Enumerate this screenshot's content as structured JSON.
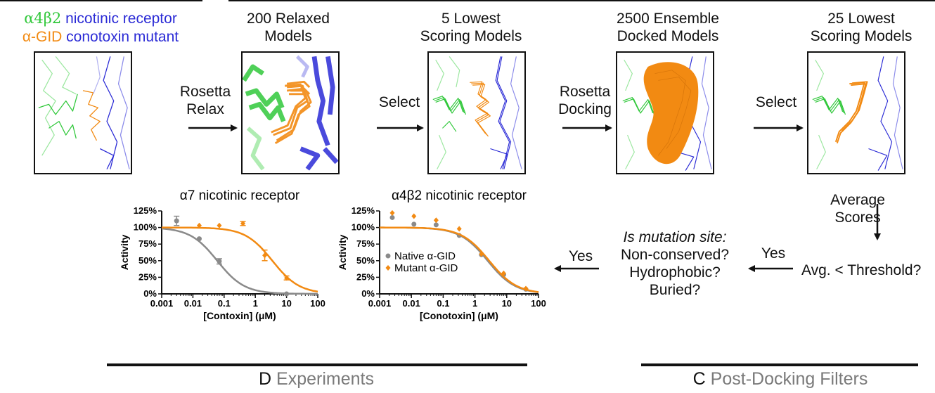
{
  "legend": {
    "line1_sym": "α4β2",
    "line1_text": " nicotinic receptor",
    "line2_sym": "α-GID",
    "line2_text": " conotoxin mutant",
    "green": "#31c83b",
    "blue": "#2b2bd6",
    "orange": "#f28a12"
  },
  "headers": {
    "relaxed": [
      "200 Relaxed",
      "Models"
    ],
    "lowest5": [
      "5 Lowest",
      "Scoring Models"
    ],
    "ensemble": [
      "2500 Ensemble",
      "Docked Models"
    ],
    "lowest25": [
      "25 Lowest",
      "Scoring Models"
    ]
  },
  "steps": {
    "relax": [
      "Rosetta",
      "Relax"
    ],
    "select1": "Select",
    "docking": [
      "Rosetta",
      "Docking"
    ],
    "select2": "Select",
    "average": [
      "Average",
      "Scores"
    ],
    "threshold": "Avg. < Threshold?",
    "yes1": "Yes",
    "yes2": "Yes"
  },
  "criteria": {
    "title": "Is mutation site:",
    "items": [
      "Non-conserved?",
      "Hydrophobic?",
      "Buried?"
    ]
  },
  "footers": {
    "experiments_letter": "D",
    "experiments_text": " Experiments",
    "filters_letter": "C",
    "filters_text": " Post-Docking Filters"
  },
  "chart_data": [
    {
      "type": "scatter",
      "title": "α7 nicotinic receptor",
      "xlabel": "[Contoxin] (μM)",
      "ylabel": "Activity",
      "xscale": "log",
      "xlim": [
        0.001,
        100
      ],
      "ylim": [
        0,
        125
      ],
      "xticks": [
        "0.001",
        "0.01",
        "0.1",
        "1",
        "10",
        "100"
      ],
      "yticks": [
        "0%",
        "25%",
        "50%",
        "75%",
        "100%",
        "125%"
      ],
      "grid": false,
      "series": [
        {
          "color": "#8a8a8a",
          "marker": "circle",
          "x": [
            0.003,
            0.016,
            0.07,
            10
          ],
          "y": [
            110,
            83,
            49,
            0
          ],
          "err": [
            7,
            0,
            4,
            0
          ],
          "fit": {
            "ic50": 0.06,
            "top": 100
          }
        },
        {
          "color": "#f28a12",
          "marker": "diamond",
          "x": [
            0.016,
            0.07,
            0.4,
            2.0,
            10
          ],
          "y": [
            103,
            103,
            106,
            58,
            24
          ],
          "err": [
            0,
            0,
            3,
            8,
            3
          ],
          "fit": {
            "ic50": 3.5,
            "top": 100
          }
        }
      ]
    },
    {
      "type": "scatter",
      "title": "α4β2 nicotinic receptor",
      "xlabel": "[Conotoxin] (μM)",
      "ylabel": "Activity",
      "xscale": "log",
      "xlim": [
        0.001,
        100
      ],
      "ylim": [
        0,
        125
      ],
      "xticks": [
        "0.001",
        "0.01",
        "0.1",
        "1",
        "10",
        "100"
      ],
      "yticks": [
        "0%",
        "25%",
        "50%",
        "75%",
        "100%",
        "125%"
      ],
      "legend": [
        "Native α-GID",
        "Mutant α-GID"
      ],
      "legend_position": "bottom-left",
      "grid": false,
      "series": [
        {
          "name": "Native α-GID",
          "color": "#8a8a8a",
          "marker": "circle",
          "x": [
            0.0025,
            0.012,
            0.06,
            0.32,
            1.6,
            8,
            40
          ],
          "y": [
            115,
            105,
            104,
            88,
            59,
            29,
            7
          ],
          "fit": {
            "ic50": 2.5,
            "top": 100
          }
        },
        {
          "name": "Mutant α-GID",
          "color": "#f28a12",
          "marker": "diamond",
          "x": [
            0.0025,
            0.012,
            0.06,
            0.32,
            1.6,
            8,
            40
          ],
          "y": [
            122,
            117,
            111,
            98,
            60,
            31,
            8
          ],
          "fit": {
            "ic50": 2.8,
            "top": 100
          }
        }
      ]
    }
  ]
}
